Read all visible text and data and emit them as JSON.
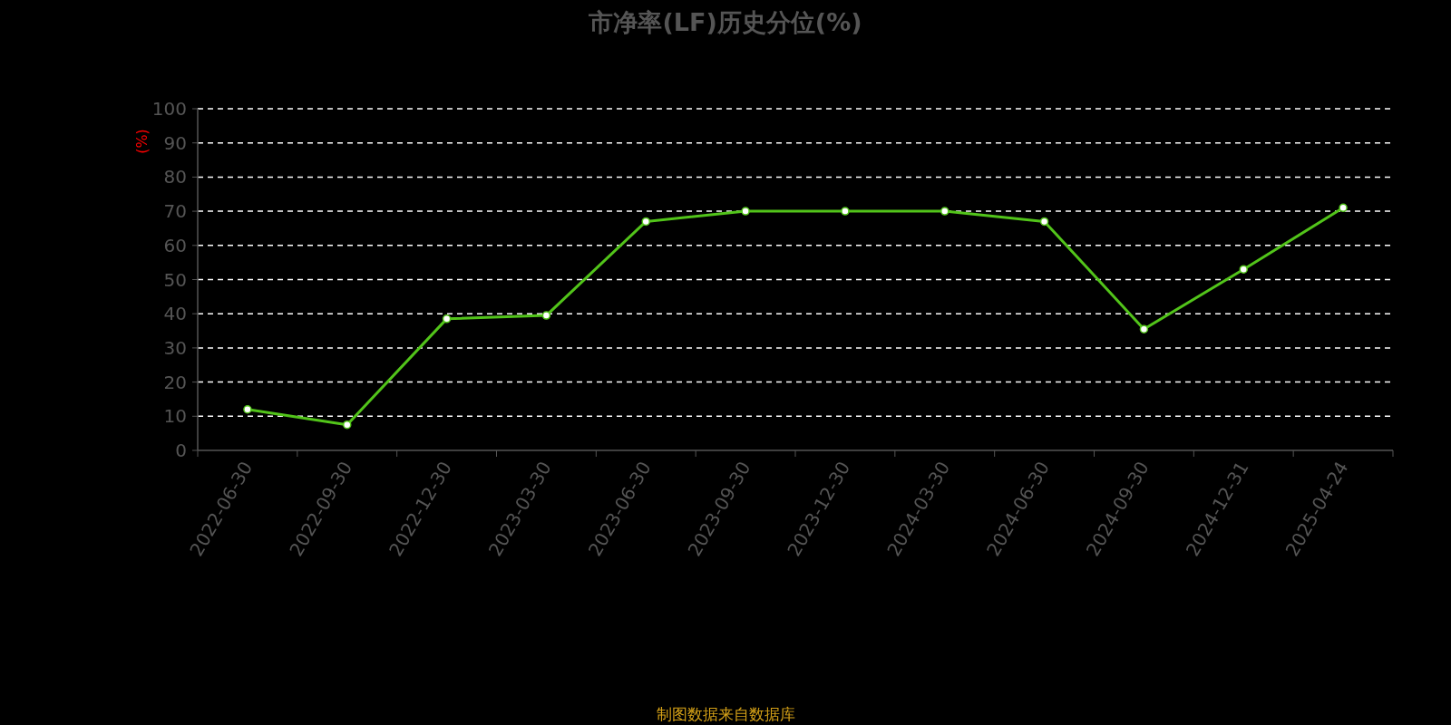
{
  "chart_data": {
    "type": "line",
    "title": "市净率(LF)历史分位(%)",
    "ylabel": "(%)",
    "categories": [
      "2022-06-30",
      "2022-09-30",
      "2022-12-30",
      "2023-03-30",
      "2023-06-30",
      "2023-09-30",
      "2023-12-30",
      "2024-03-30",
      "2024-06-30",
      "2024-09-30",
      "2024-12-31",
      "2025-04-24"
    ],
    "series": [
      {
        "color": "#52c41a",
        "values": [
          12,
          7.5,
          38.5,
          39.5,
          67,
          70,
          70,
          70,
          67,
          35.5,
          53,
          71
        ]
      }
    ],
    "ylim": [
      0,
      100
    ],
    "yticks": [
      0,
      10,
      20,
      30,
      40,
      50,
      60,
      70,
      80,
      90,
      100
    ],
    "grid": "y",
    "marker": "circle",
    "line_style": "solid",
    "annotations": [
      "制图数据来自数据库"
    ]
  }
}
